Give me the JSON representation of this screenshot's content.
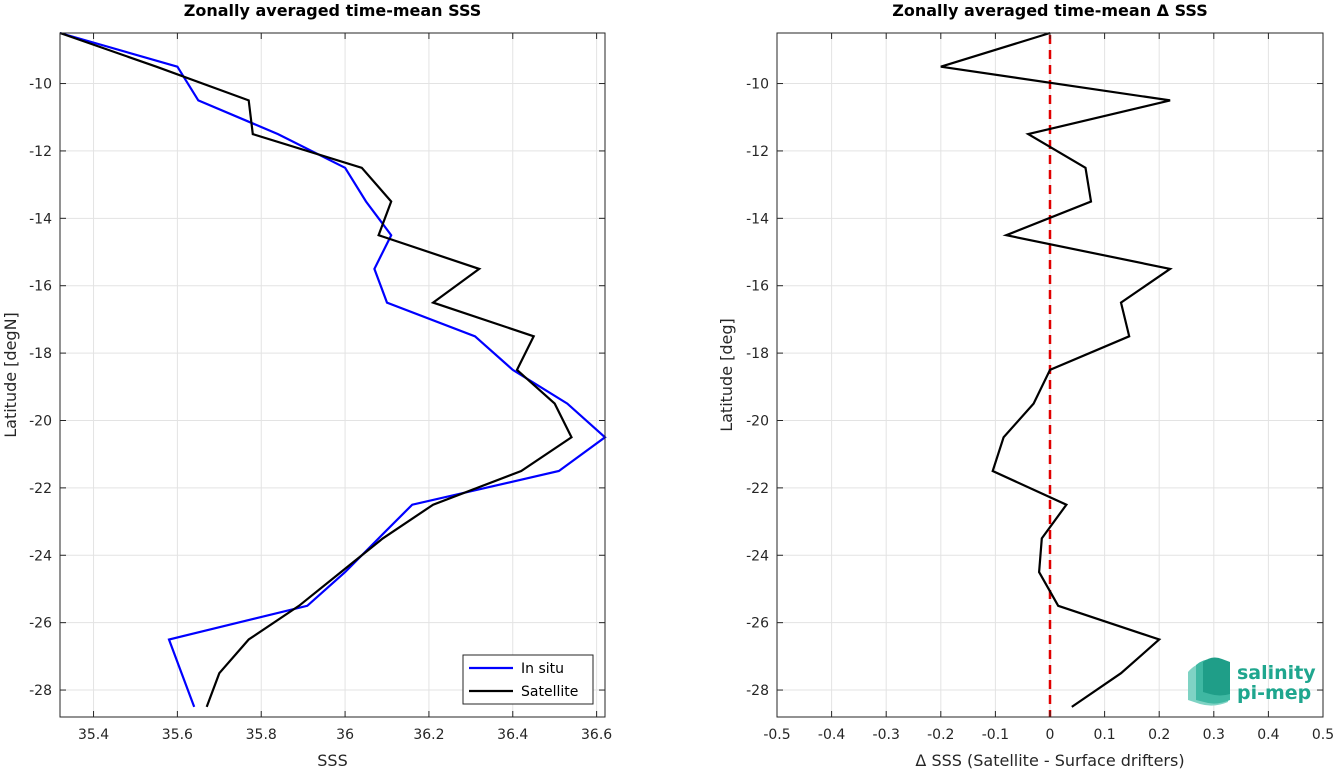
{
  "chart_data": [
    {
      "type": "line",
      "title": "Zonally averaged time-mean SSS",
      "xlabel": "SSS",
      "ylabel": "Latitude [degN]",
      "xlim": [
        35.32,
        36.62
      ],
      "ylim": [
        -28.8,
        -8.5
      ],
      "xticks": [
        35.4,
        35.6,
        35.8,
        36,
        36.2,
        36.4,
        36.6
      ],
      "xtick_labels": [
        "35.4",
        "35.6",
        "35.8",
        "36",
        "36.2",
        "36.4",
        "36.6"
      ],
      "yticks": [
        -10,
        -12,
        -14,
        -16,
        -18,
        -20,
        -22,
        -24,
        -26,
        -28
      ],
      "ytick_labels": [
        "-10",
        "-12",
        "-14",
        "-16",
        "-18",
        "-20",
        "-22",
        "-24",
        "-26",
        "-28"
      ],
      "grid": true,
      "legend_position": "bottom-right",
      "series": [
        {
          "name": "In situ",
          "color": "#0000ff",
          "lat": [
            -8.5,
            -9.5,
            -10.5,
            -11.5,
            -12.5,
            -13.5,
            -14.5,
            -15.5,
            -16.5,
            -17.5,
            -18.5,
            -19.5,
            -20.5,
            -21.5,
            -22.5,
            -23.5,
            -24.5,
            -25.5,
            -26.5,
            -27.5,
            -28.5
          ],
          "sss": [
            35.32,
            35.6,
            35.65,
            35.84,
            36.0,
            36.05,
            36.11,
            36.07,
            36.1,
            36.31,
            36.4,
            36.53,
            36.62,
            36.51,
            36.16,
            36.08,
            36.0,
            35.91,
            35.58,
            35.61,
            35.64
          ]
        },
        {
          "name": "Satellite",
          "color": "#000000",
          "lat": [
            -8.5,
            -9.5,
            -10.5,
            -11.5,
            -12.5,
            -13.5,
            -14.5,
            -15.5,
            -16.5,
            -17.5,
            -18.5,
            -19.5,
            -20.5,
            -21.5,
            -22.5,
            -23.5,
            -24.5,
            -25.5,
            -26.5,
            -27.5,
            -28.5
          ],
          "sss": [
            35.32,
            35.55,
            35.77,
            35.78,
            36.04,
            36.11,
            36.08,
            36.32,
            36.21,
            36.45,
            36.41,
            36.5,
            36.54,
            36.42,
            36.21,
            36.09,
            35.99,
            35.89,
            35.77,
            35.7,
            35.67
          ]
        }
      ]
    },
    {
      "type": "line",
      "title": "Zonally averaged time-mean Δ SSS",
      "xlabel": "Δ SSS (Satellite - Surface drifters)",
      "ylabel": "Latitude [deg]",
      "xlim": [
        -0.5,
        0.5
      ],
      "ylim": [
        -28.8,
        -8.5
      ],
      "xticks": [
        -0.5,
        -0.4,
        -0.3,
        -0.2,
        -0.1,
        0,
        0.1,
        0.2,
        0.3,
        0.4,
        0.5
      ],
      "xtick_labels": [
        "-0.5",
        "-0.4",
        "-0.3",
        "-0.2",
        "-0.1",
        "0",
        "0.1",
        "0.2",
        "0.3",
        "0.4",
        "0.5"
      ],
      "yticks": [
        -10,
        -12,
        -14,
        -16,
        -18,
        -20,
        -22,
        -24,
        -26,
        -28
      ],
      "ytick_labels": [
        "-10",
        "-12",
        "-14",
        "-16",
        "-18",
        "-20",
        "-22",
        "-24",
        "-26",
        "-28"
      ],
      "grid": true,
      "reference_line": {
        "x": 0,
        "color": "#e00000",
        "style": "dashed"
      },
      "series": [
        {
          "color": "#000000",
          "lat": [
            -8.5,
            -9.5,
            -10.5,
            -11.5,
            -12.5,
            -13.5,
            -14.5,
            -15.5,
            -16.5,
            -17.5,
            -18.5,
            -19.5,
            -20.5,
            -21.5,
            -22.5,
            -23.5,
            -24.5,
            -25.5,
            -26.5,
            -27.5,
            -28.5
          ],
          "dsss": [
            0.0,
            -0.2,
            0.22,
            -0.04,
            0.065,
            0.075,
            -0.08,
            0.22,
            0.13,
            0.145,
            0.0,
            -0.03,
            -0.085,
            -0.105,
            0.03,
            -0.015,
            -0.02,
            0.015,
            0.2,
            0.13,
            0.04
          ]
        }
      ]
    }
  ],
  "logo": {
    "line1": "salinity",
    "line2": "pi-mep",
    "color": "#1fa68e"
  }
}
